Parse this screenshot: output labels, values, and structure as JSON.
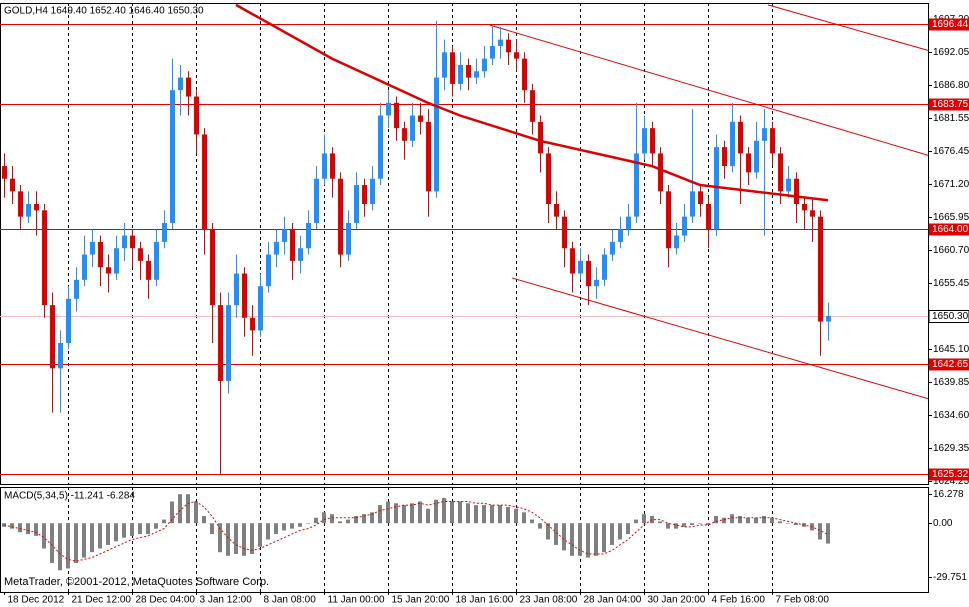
{
  "chart_data": {
    "type": "candlestick",
    "title": "GOLD,H4  1649.40 1652.40 1646.40 1650.30",
    "up_color": "#1e90ff",
    "down_color": "#e00000",
    "candles": [
      [
        1674,
        1676,
        1669,
        1672
      ],
      [
        1672,
        1674,
        1668,
        1670
      ],
      [
        1670,
        1671,
        1664,
        1666
      ],
      [
        1666,
        1670,
        1665,
        1668
      ],
      [
        1668,
        1670,
        1663,
        1667
      ],
      [
        1667,
        1668,
        1650,
        1652
      ],
      [
        1652,
        1654,
        1635,
        1642
      ],
      [
        1642,
        1648,
        1635,
        1646
      ],
      [
        1646,
        1655,
        1645,
        1653
      ],
      [
        1653,
        1658,
        1651,
        1656
      ],
      [
        1656,
        1663,
        1655,
        1660
      ],
      [
        1660,
        1664,
        1658,
        1662
      ],
      [
        1662,
        1663,
        1655,
        1658
      ],
      [
        1658,
        1660,
        1654,
        1657
      ],
      [
        1657,
        1663,
        1656,
        1661
      ],
      [
        1661,
        1665,
        1659,
        1663
      ],
      [
        1663,
        1664,
        1658,
        1661
      ],
      [
        1661,
        1662,
        1656,
        1659
      ],
      [
        1659,
        1660,
        1653,
        1656
      ],
      [
        1656,
        1664,
        1655,
        1662
      ],
      [
        1662,
        1667,
        1661,
        1665
      ],
      [
        1665,
        1691,
        1664,
        1686
      ],
      [
        1686,
        1690,
        1682,
        1688
      ],
      [
        1688,
        1689,
        1682,
        1685
      ],
      [
        1685,
        1686,
        1676,
        1679
      ],
      [
        1679,
        1680,
        1660,
        1664
      ],
      [
        1664,
        1665,
        1646,
        1652
      ],
      [
        1652,
        1654,
        1625.3,
        1640
      ],
      [
        1640,
        1654,
        1638,
        1652
      ],
      [
        1652,
        1660,
        1650,
        1657
      ],
      [
        1657,
        1658,
        1647,
        1650
      ],
      [
        1650,
        1652,
        1644,
        1648
      ],
      [
        1648,
        1657,
        1647,
        1655
      ],
      [
        1655,
        1662,
        1654,
        1660
      ],
      [
        1660,
        1664,
        1658,
        1662
      ],
      [
        1662,
        1666,
        1660,
        1664
      ],
      [
        1664,
        1665,
        1656,
        1659
      ],
      [
        1659,
        1663,
        1657,
        1661
      ],
      [
        1661,
        1667,
        1660,
        1665
      ],
      [
        1665,
        1674,
        1664,
        1672
      ],
      [
        1672,
        1679,
        1671,
        1676
      ],
      [
        1676,
        1677,
        1669,
        1672
      ],
      [
        1672,
        1673,
        1658,
        1660
      ],
      [
        1660,
        1667,
        1659,
        1665
      ],
      [
        1665,
        1673,
        1664,
        1671
      ],
      [
        1671,
        1672,
        1666,
        1668
      ],
      [
        1668,
        1674,
        1667,
        1672
      ],
      [
        1672,
        1684,
        1671,
        1682
      ],
      [
        1682,
        1686,
        1680,
        1684
      ],
      [
        1684,
        1685,
        1678,
        1680
      ],
      [
        1680,
        1681,
        1675,
        1678
      ],
      [
        1678,
        1684,
        1677,
        1682
      ],
      [
        1682,
        1684,
        1679,
        1681
      ],
      [
        1681,
        1683,
        1666,
        1670
      ],
      [
        1670,
        1697,
        1669,
        1688
      ],
      [
        1688,
        1694,
        1686,
        1692
      ],
      [
        1692,
        1693,
        1685,
        1687
      ],
      [
        1687,
        1692,
        1686,
        1690
      ],
      [
        1690,
        1691,
        1686,
        1688
      ],
      [
        1688,
        1691,
        1687,
        1689
      ],
      [
        1689,
        1693,
        1688,
        1691
      ],
      [
        1691,
        1696,
        1690,
        1693
      ],
      [
        1693,
        1696,
        1691,
        1694
      ],
      [
        1694,
        1695,
        1690,
        1692
      ],
      [
        1692,
        1694,
        1689,
        1691
      ],
      [
        1691,
        1692,
        1684,
        1686
      ],
      [
        1686,
        1687,
        1679,
        1681
      ],
      [
        1681,
        1682,
        1673,
        1676
      ],
      [
        1676,
        1677,
        1665,
        1668
      ],
      [
        1668,
        1670,
        1664,
        1666
      ],
      [
        1666,
        1667,
        1658,
        1661
      ],
      [
        1661,
        1662,
        1654,
        1657
      ],
      [
        1657,
        1661,
        1656,
        1659
      ],
      [
        1659,
        1660,
        1652,
        1655
      ],
      [
        1655,
        1658,
        1653,
        1656
      ],
      [
        1656,
        1661,
        1655,
        1660
      ],
      [
        1660,
        1664,
        1659,
        1662
      ],
      [
        1662,
        1666,
        1661,
        1664
      ],
      [
        1664,
        1668,
        1663,
        1666
      ],
      [
        1666,
        1684,
        1665,
        1676
      ],
      [
        1676,
        1682,
        1675,
        1680
      ],
      [
        1680,
        1681,
        1674,
        1676
      ],
      [
        1676,
        1677,
        1668,
        1670
      ],
      [
        1670,
        1671,
        1658,
        1661
      ],
      [
        1661,
        1665,
        1660,
        1663
      ],
      [
        1663,
        1668,
        1662,
        1666
      ],
      [
        1666,
        1683,
        1665,
        1670
      ],
      [
        1670,
        1671,
        1666,
        1668
      ],
      [
        1668,
        1669,
        1661,
        1664
      ],
      [
        1664,
        1679,
        1663,
        1677
      ],
      [
        1677,
        1678,
        1672,
        1674
      ],
      [
        1674,
        1684,
        1673,
        1681
      ],
      [
        1681,
        1682,
        1668,
        1676
      ],
      [
        1676,
        1677,
        1671,
        1673
      ],
      [
        1673,
        1681,
        1672,
        1678
      ],
      [
        1678,
        1683,
        1663,
        1680
      ],
      [
        1680,
        1681,
        1674,
        1676
      ],
      [
        1676,
        1677,
        1668,
        1670
      ],
      [
        1670,
        1674,
        1669,
        1672
      ],
      [
        1672,
        1673,
        1665,
        1668
      ],
      [
        1668,
        1669,
        1664,
        1667
      ],
      [
        1667,
        1669,
        1662,
        1666
      ],
      [
        1666,
        1667,
        1644,
        1649.4
      ],
      [
        1649.4,
        1652.4,
        1646.4,
        1650.3
      ]
    ],
    "xlim": [
      -0.5,
      115.5
    ],
    "xticks": [
      {
        "value": 0,
        "label": "18 Dec 2012"
      },
      {
        "value": 8,
        "label": "21 Dec 12:00"
      },
      {
        "value": 16,
        "label": "28 Dec 04:00"
      },
      {
        "value": 24,
        "label": "3 Jan 12:00"
      },
      {
        "value": 32,
        "label": "8 Jan 08:00"
      },
      {
        "value": 40,
        "label": "11 Jan 00:00"
      },
      {
        "value": 48,
        "label": "15 Jan 20:00"
      },
      {
        "value": 56,
        "label": "18 Jan 16:00"
      },
      {
        "value": 64,
        "label": "23 Jan 08:00"
      },
      {
        "value": 72,
        "label": "28 Jan 04:00"
      },
      {
        "value": 80,
        "label": "30 Jan 20:00"
      },
      {
        "value": 88,
        "label": "4 Feb 16:00"
      },
      {
        "value": 96,
        "label": "7 Feb 08:00"
      }
    ],
    "ylim": [
      1623.7,
      1699.8
    ],
    "yticks": [
      {
        "value": 1697.2,
        "label": "1697.20"
      },
      1692.05,
      {
        "value": 1686.8,
        "label": "1686.80"
      },
      1681.55,
      1676.45,
      {
        "value": 1671.2,
        "label": "1671.20"
      },
      1665.95,
      {
        "value": 1660.7,
        "label": "1660.70"
      },
      1655.45,
      {
        "value": 1645.1,
        "label": "1645.10"
      },
      1639.85,
      {
        "value": 1634.6,
        "label": "1634.60"
      },
      1629.35,
      1624.25
    ],
    "levels": [
      1696.44,
      1683.75,
      {
        "value": 1664,
        "label": "1664.00"
      },
      1642.65,
      1625.32
    ],
    "level_color": "#e00000",
    "current_price": {
      "value": 1650.3,
      "label": "1650.30"
    },
    "ma": {
      "color": "#dd0000",
      "x": [
        29,
        41,
        53,
        57,
        67,
        81,
        87,
        97,
        103
      ],
      "values": [
        1699.5,
        1691,
        1684,
        1682,
        1678,
        1674,
        1671,
        1669.5,
        1668.6
      ]
    },
    "trendlines": [
      {
        "x": [
          95.5,
          115.5
        ],
        "values": [
          1699.5,
          1692.3
        ]
      },
      {
        "x": [
          60.75,
          115.5
        ],
        "values": [
          1696.3,
          1675.7
        ]
      },
      {
        "x": [
          63.5,
          115.5
        ],
        "values": [
          1656.3,
          1637.2
        ]
      }
    ],
    "macd": {
      "title": "MACD(5,34,5) -11.241 -6.284",
      "ylim": [
        -38,
        20
      ],
      "yticks": [
        16.278,
        {
          "value": 0,
          "label": "0.00"
        },
        -29.751
      ],
      "histogram": [
        -2,
        -3,
        -5,
        -6,
        -7,
        -14,
        -22,
        -26,
        -25,
        -22,
        -19,
        -16,
        -14,
        -12,
        -10,
        -8,
        -7,
        -6,
        -6,
        -3,
        2,
        12,
        16,
        16,
        12,
        4,
        -6,
        -16,
        -18,
        -17,
        -18,
        -17,
        -13,
        -9,
        -6,
        -4,
        -3,
        -2,
        0,
        3,
        6,
        5,
        1,
        2,
        4,
        5,
        6,
        10,
        12,
        11,
        10,
        11,
        12,
        8,
        13,
        14,
        12,
        12,
        11,
        10,
        10,
        10,
        10,
        9,
        8,
        6,
        2,
        -3,
        -9,
        -12,
        -15,
        -18,
        -18,
        -19,
        -18,
        -16,
        -12,
        -9,
        -6,
        2,
        5,
        4,
        1,
        -3,
        -3,
        -2,
        -1,
        0,
        -1,
        4,
        3,
        5,
        4,
        3,
        3,
        4,
        3,
        1,
        0,
        -1,
        -2,
        -4,
        -9,
        -11.241
      ],
      "signal": [
        -1,
        -2,
        -3,
        -4,
        -5,
        -8,
        -12,
        -17,
        -20,
        -21,
        -20,
        -19,
        -17,
        -15,
        -13,
        -11,
        -9,
        -8,
        -7,
        -5,
        -3,
        2,
        7,
        11,
        12,
        9,
        4,
        -3,
        -8,
        -12,
        -14,
        -15,
        -14,
        -12,
        -10,
        -8,
        -6,
        -4,
        -3,
        -1,
        2,
        3,
        3,
        3,
        3,
        4,
        5,
        7,
        8,
        9,
        10,
        10,
        11,
        10,
        11,
        12,
        12,
        12,
        12,
        11,
        11,
        10,
        10,
        10,
        9,
        8,
        6,
        3,
        -1,
        -5,
        -9,
        -12,
        -15,
        -17,
        -17,
        -17,
        -15,
        -12,
        -9,
        -5,
        -1,
        2,
        2,
        0,
        -1,
        -2,
        -2,
        -1,
        -1,
        1,
        2,
        3,
        3,
        3,
        3,
        3,
        3,
        2,
        1,
        0,
        -1,
        -2,
        -4,
        -6.284
      ],
      "histogram_color": "#808080",
      "signal_color": "#e00000"
    },
    "copyright": "MetaTrader, ©2001-2012, MetaQuotes Software Corp."
  }
}
